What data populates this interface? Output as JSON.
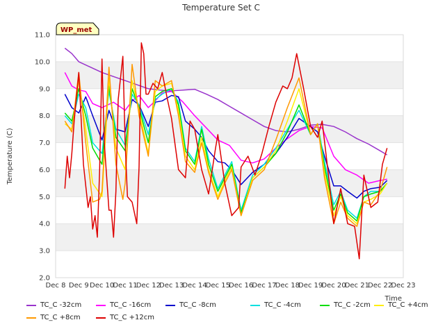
{
  "chart_data": {
    "type": "line",
    "title": "Temperature Set C",
    "xlabel": "Time",
    "ylabel": "Temperature (C)",
    "annotation": "WP_met",
    "x_range": [
      "Dec 8",
      "Dec 23"
    ],
    "ylim": [
      2.0,
      11.0
    ],
    "x_ticks": [
      "Dec 8",
      "Dec 9",
      "Dec 10",
      "Dec 11",
      "Dec 12",
      "Dec 13",
      "Dec 14",
      "Dec 15",
      "Dec 16",
      "Dec 17",
      "Dec 18",
      "Dec 19",
      "Dec 20",
      "Dec 21",
      "Dec 22",
      "Dec 23"
    ],
    "y_ticks": [
      "2.0",
      "3.0",
      "4.0",
      "5.0",
      "6.0",
      "7.0",
      "8.0",
      "9.0",
      "10.0",
      "11.0"
    ],
    "grid": "horizontal bands",
    "legend_placement": "bottom",
    "series": [
      {
        "name": "TC_C -32cm",
        "color": "#9933cc",
        "x": [
          8.4,
          8.7,
          9.0,
          9.5,
          10.0,
          10.5,
          11.0,
          11.5,
          12.0,
          12.5,
          13.0,
          13.5,
          14.0,
          14.5,
          15.0,
          15.5,
          16.0,
          16.5,
          17.0,
          17.5,
          18.0,
          18.5,
          19.0,
          19.5,
          20.0,
          20.5,
          21.0,
          21.5,
          22.0,
          22.3
        ],
        "y": [
          10.5,
          10.3,
          10.0,
          9.8,
          9.6,
          9.45,
          9.3,
          9.15,
          9.0,
          8.95,
          8.92,
          8.95,
          8.98,
          8.8,
          8.6,
          8.35,
          8.1,
          7.85,
          7.6,
          7.45,
          7.4,
          7.5,
          7.65,
          7.68,
          7.6,
          7.4,
          7.15,
          6.95,
          6.7,
          6.55
        ]
      },
      {
        "name": "TC_C -16cm",
        "color": "#ff00ff",
        "x": [
          8.4,
          8.7,
          9.0,
          9.3,
          9.6,
          10.0,
          10.5,
          11.0,
          11.3,
          11.6,
          12.0,
          12.3,
          12.6,
          13.0,
          13.5,
          14.0,
          14.5,
          15.0,
          15.5,
          16.0,
          16.5,
          17.0,
          17.5,
          18.0,
          18.5,
          19.0,
          19.5,
          20.0,
          20.5,
          21.0,
          21.5,
          22.0,
          22.3
        ],
        "y": [
          9.6,
          9.1,
          8.95,
          8.9,
          8.45,
          8.3,
          8.5,
          8.2,
          8.55,
          8.75,
          8.3,
          8.55,
          8.85,
          8.9,
          8.5,
          8.0,
          7.55,
          7.1,
          6.9,
          6.35,
          6.25,
          6.4,
          6.8,
          7.15,
          7.45,
          7.6,
          7.55,
          6.5,
          6.0,
          5.8,
          5.5,
          5.6,
          5.65
        ]
      },
      {
        "name": "TC_C -8cm",
        "color": "#0000cc",
        "x": [
          8.4,
          8.7,
          9.0,
          9.3,
          9.6,
          10.0,
          10.3,
          10.6,
          11.0,
          11.3,
          11.6,
          12.0,
          12.3,
          12.6,
          13.0,
          13.3,
          13.6,
          14.0,
          14.3,
          14.6,
          15.0,
          15.3,
          15.6,
          16.0,
          16.5,
          17.0,
          17.5,
          18.0,
          18.5,
          19.0,
          19.3,
          19.6,
          20.0,
          20.3,
          20.6,
          21.0,
          21.3,
          21.6,
          22.0,
          22.3
        ],
        "y": [
          8.8,
          8.3,
          8.1,
          8.7,
          8.0,
          7.1,
          8.2,
          7.5,
          7.4,
          8.6,
          8.4,
          7.6,
          8.5,
          8.55,
          8.75,
          8.7,
          7.8,
          7.5,
          7.2,
          6.7,
          6.3,
          6.25,
          6.0,
          5.45,
          5.9,
          6.2,
          6.6,
          7.2,
          7.9,
          7.6,
          7.4,
          6.5,
          5.4,
          5.4,
          5.2,
          4.95,
          5.2,
          5.3,
          5.35,
          5.6
        ]
      },
      {
        "name": "TC_C -4cm",
        "color": "#00e0e0",
        "x": [
          8.4,
          8.7,
          9.0,
          9.3,
          9.6,
          10.0,
          10.3,
          10.6,
          11.0,
          11.3,
          11.6,
          12.0,
          12.3,
          12.6,
          13.0,
          13.3,
          13.6,
          14.0,
          14.3,
          14.6,
          15.0,
          15.3,
          15.6,
          16.0,
          16.5,
          17.0,
          17.5,
          18.0,
          18.5,
          19.0,
          19.3,
          19.6,
          20.0,
          20.3,
          20.6,
          21.0,
          21.3,
          21.6,
          22.0,
          22.3
        ],
        "y": [
          8.0,
          7.7,
          8.8,
          8.3,
          7.0,
          6.6,
          8.9,
          7.5,
          6.9,
          8.8,
          8.4,
          7.3,
          8.6,
          8.8,
          9.0,
          8.5,
          6.8,
          6.3,
          7.6,
          6.4,
          5.3,
          5.8,
          6.3,
          4.5,
          5.8,
          6.2,
          6.8,
          7.5,
          8.2,
          7.3,
          7.7,
          6.3,
          4.7,
          5.2,
          4.5,
          4.2,
          5.0,
          5.2,
          5.2,
          5.5
        ]
      },
      {
        "name": "TC_C -2cm",
        "color": "#00dd00",
        "x": [
          8.4,
          8.7,
          9.0,
          9.3,
          9.6,
          10.0,
          10.3,
          10.6,
          11.0,
          11.3,
          11.6,
          12.0,
          12.3,
          12.6,
          13.0,
          13.3,
          13.6,
          14.0,
          14.3,
          14.6,
          15.0,
          15.3,
          15.6,
          16.0,
          16.5,
          17.0,
          17.5,
          18.0,
          18.5,
          19.0,
          19.3,
          19.6,
          20.0,
          20.3,
          20.6,
          21.0,
          21.3,
          21.6,
          22.0,
          22.3
        ],
        "y": [
          8.1,
          7.8,
          9.0,
          8.0,
          6.8,
          6.2,
          9.1,
          7.2,
          6.7,
          9.0,
          8.3,
          7.0,
          8.7,
          8.9,
          9.0,
          8.4,
          6.7,
          6.2,
          7.5,
          6.2,
          5.2,
          5.7,
          6.2,
          4.4,
          5.7,
          6.1,
          6.6,
          7.4,
          8.4,
          7.3,
          7.7,
          6.1,
          4.5,
          5.1,
          4.4,
          4.1,
          5.0,
          5.1,
          5.2,
          5.5
        ]
      },
      {
        "name": "TC_C +4cm",
        "color": "#ffee00",
        "x": [
          8.4,
          8.7,
          9.0,
          9.3,
          9.6,
          10.0,
          10.3,
          10.6,
          11.0,
          11.3,
          11.6,
          12.0,
          12.3,
          12.6,
          13.0,
          13.3,
          13.6,
          14.0,
          14.3,
          14.6,
          15.0,
          15.3,
          15.6,
          16.0,
          16.5,
          17.0,
          17.5,
          18.0,
          18.5,
          19.0,
          19.3,
          19.6,
          20.0,
          20.3,
          20.6,
          21.0,
          21.3,
          21.6,
          22.0,
          22.3
        ],
        "y": [
          7.7,
          7.5,
          9.3,
          7.5,
          5.5,
          5.0,
          9.4,
          6.8,
          6.0,
          9.3,
          8.2,
          6.6,
          8.9,
          9.1,
          9.2,
          8.2,
          6.5,
          6.0,
          7.2,
          6.0,
          5.0,
          5.6,
          6.1,
          4.3,
          5.7,
          6.1,
          6.7,
          7.8,
          9.0,
          7.3,
          7.7,
          5.9,
          4.3,
          5.0,
          4.3,
          4.0,
          4.8,
          4.9,
          5.1,
          5.5
        ]
      },
      {
        "name": "TC_C +8cm",
        "color": "#ff9900",
        "x": [
          8.4,
          8.7,
          9.0,
          9.3,
          9.6,
          9.9,
          10.0,
          10.3,
          10.6,
          10.9,
          11.0,
          11.3,
          11.6,
          12.0,
          12.3,
          12.6,
          13.0,
          13.3,
          13.6,
          14.0,
          14.3,
          14.6,
          15.0,
          15.3,
          15.6,
          16.0,
          16.5,
          17.0,
          17.5,
          18.0,
          18.5,
          19.0,
          19.3,
          19.6,
          20.0,
          20.3,
          20.6,
          21.0,
          21.3,
          21.6,
          22.0,
          22.3
        ],
        "y": [
          7.8,
          7.4,
          9.6,
          7.0,
          4.8,
          4.9,
          5.2,
          9.8,
          6.2,
          4.9,
          5.5,
          9.9,
          8.0,
          6.5,
          9.3,
          9.1,
          9.3,
          8.0,
          6.3,
          5.9,
          7.0,
          5.9,
          4.9,
          5.5,
          6.0,
          4.3,
          5.6,
          6.0,
          7.1,
          8.3,
          9.4,
          7.3,
          7.7,
          5.7,
          4.0,
          4.8,
          4.2,
          3.9,
          4.8,
          4.7,
          5.2,
          6.1
        ]
      },
      {
        "name": "TC_C +12cm",
        "color": "#dd0000",
        "x": [
          8.4,
          8.5,
          8.6,
          8.7,
          8.8,
          9.0,
          9.2,
          9.4,
          9.5,
          9.6,
          9.7,
          9.8,
          9.9,
          10.0,
          10.1,
          10.3,
          10.4,
          10.5,
          10.6,
          10.7,
          10.9,
          11.0,
          11.1,
          11.3,
          11.5,
          11.6,
          11.7,
          11.8,
          11.9,
          12.0,
          12.2,
          12.4,
          12.6,
          12.8,
          13.0,
          13.3,
          13.6,
          13.8,
          14.0,
          14.3,
          14.6,
          14.9,
          15.0,
          15.3,
          15.6,
          15.9,
          16.0,
          16.3,
          16.6,
          16.9,
          17.2,
          17.5,
          17.8,
          18.0,
          18.2,
          18.4,
          18.7,
          19.0,
          19.3,
          19.5,
          19.8,
          20.0,
          20.3,
          20.6,
          20.9,
          21.1,
          21.3,
          21.6,
          21.9,
          22.1,
          22.3
        ],
        "y": [
          5.3,
          6.5,
          5.7,
          6.6,
          7.8,
          9.6,
          6.2,
          4.6,
          5.0,
          3.8,
          4.3,
          3.5,
          6.0,
          10.1,
          7.0,
          4.5,
          4.5,
          3.5,
          5.2,
          8.6,
          10.2,
          7.0,
          5.0,
          4.8,
          4.0,
          6.1,
          10.7,
          10.3,
          8.8,
          8.8,
          9.2,
          9.0,
          9.6,
          8.7,
          7.9,
          6.0,
          5.7,
          7.8,
          7.5,
          6.0,
          5.1,
          6.8,
          7.3,
          5.5,
          4.3,
          4.6,
          6.1,
          6.5,
          5.8,
          6.6,
          7.6,
          8.5,
          9.1,
          9.0,
          9.4,
          10.3,
          9.0,
          7.6,
          7.2,
          7.8,
          5.6,
          4.0,
          5.3,
          4.0,
          3.9,
          2.7,
          5.8,
          4.6,
          4.8,
          6.2,
          6.8
        ]
      }
    ]
  }
}
